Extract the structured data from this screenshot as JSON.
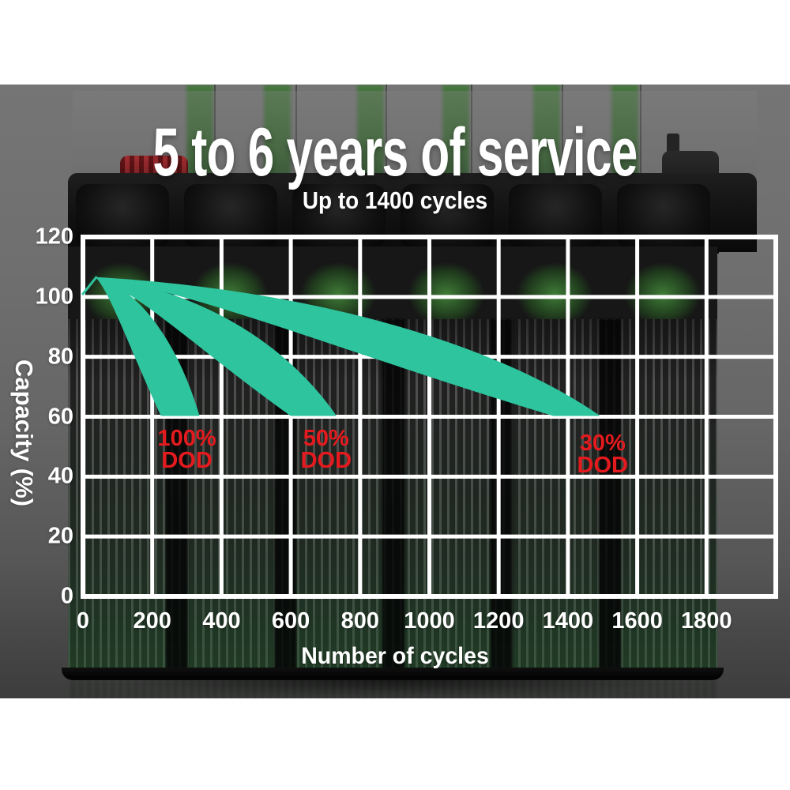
{
  "header": {
    "title": "5 to 6 years of service",
    "subtitle": "Up to 1400 cycles"
  },
  "colors": {
    "band_teal": "#2ec49e",
    "dod_red": "#e51a1e",
    "grid_white": "#ffffff",
    "battery_green": "#3f7c37",
    "backdrop_gray": "#6f6f6f"
  },
  "chart_data": {
    "type": "area",
    "title": "Battery capacity retention vs number of cycles by depth of discharge",
    "xlabel": "Number of cycles",
    "ylabel": "Capacity (%)",
    "xlim": [
      0,
      2000
    ],
    "ylim": [
      0,
      120
    ],
    "x_ticks": [
      0,
      200,
      400,
      600,
      800,
      1000,
      1200,
      1400,
      1600,
      1800
    ],
    "y_ticks": [
      0,
      20,
      40,
      60,
      80,
      100,
      120
    ],
    "x_grid_step": 200,
    "y_grid_step": 20,
    "grid": true,
    "legend_position": "none",
    "series": [
      {
        "name": "100% DOD",
        "start": {
          "cycles": 38,
          "capacity": 106.5
        },
        "end_cycles": 335,
        "tip_cycles": 226,
        "ends_at_capacity": 60,
        "points": [
          [
            0,
            101
          ],
          [
            40,
            106
          ],
          [
            150,
            95
          ],
          [
            250,
            78
          ],
          [
            335,
            60
          ]
        ]
      },
      {
        "name": "50% DOD",
        "start": {
          "cycles": 38,
          "capacity": 106.5
        },
        "end_cycles": 730,
        "tip_cycles": 600,
        "ends_at_capacity": 60,
        "points": [
          [
            0,
            101
          ],
          [
            40,
            106
          ],
          [
            300,
            92
          ],
          [
            550,
            75
          ],
          [
            730,
            60
          ]
        ]
      },
      {
        "name": "30% DOD",
        "start": {
          "cycles": 38,
          "capacity": 106.5
        },
        "end_cycles": 1490,
        "tip_cycles": 1358,
        "ends_at_capacity": 60,
        "points": [
          [
            0,
            101
          ],
          [
            40,
            106
          ],
          [
            500,
            96
          ],
          [
            1000,
            82
          ],
          [
            1490,
            60
          ]
        ]
      }
    ],
    "annotations": [
      {
        "line1": "100%",
        "line2": "DOD",
        "cycles": 300,
        "capacity": 49
      },
      {
        "line1": "50%",
        "line2": "DOD",
        "cycles": 702,
        "capacity": 49
      },
      {
        "line1": "30%",
        "line2": "DOD",
        "cycles": 1500,
        "capacity": 47.5
      }
    ]
  }
}
